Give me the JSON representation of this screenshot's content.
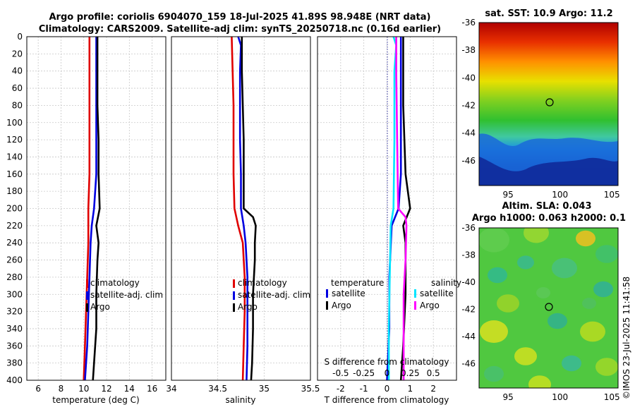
{
  "title": {
    "line1": "Argo profile: coriolis 6904070_159 18-Jul-2025 41.89S 98.948E (NRT data)",
    "line2": "Climatology: CARS2009. Satellite-adj clim: synTS_20250718.nc (0.16d earlier)"
  },
  "colors": {
    "climatology": "#e00000",
    "satellite": "#0000e0",
    "argo": "#000000",
    "sal_sat": "#00e5ff",
    "sal_argo": "#ff00ff"
  },
  "depth_ticks": [
    "0",
    "20",
    "40",
    "60",
    "80",
    "100",
    "120",
    "140",
    "160",
    "180",
    "200",
    "220",
    "240",
    "260",
    "280",
    "300",
    "320",
    "340",
    "360",
    "380",
    "400"
  ],
  "chart_data": [
    {
      "type": "line",
      "xlabel": "temperature (deg C)",
      "xlim": [
        5,
        17.2
      ],
      "ylim": [
        0,
        400
      ],
      "xticks": [
        "6",
        "8",
        "10",
        "12",
        "14",
        "16"
      ],
      "legend": [
        "climatology",
        "satellite-adj. clim",
        "Argo"
      ],
      "series": [
        {
          "name": "climatology",
          "depth": [
            0,
            40,
            80,
            120,
            160,
            200,
            240,
            280,
            320,
            360,
            400
          ],
          "values": [
            10.5,
            10.5,
            10.5,
            10.5,
            10.5,
            10.4,
            10.4,
            10.3,
            10.2,
            10.1,
            10.0
          ]
        },
        {
          "name": "satellite-adj. clim",
          "depth": [
            0,
            40,
            80,
            120,
            160,
            200,
            220,
            240,
            280,
            320,
            360,
            400
          ],
          "values": [
            11.1,
            11.1,
            11.1,
            11.1,
            11.1,
            10.9,
            10.7,
            10.6,
            10.5,
            10.4,
            10.3,
            10.1
          ]
        },
        {
          "name": "Argo",
          "depth": [
            0,
            40,
            80,
            120,
            160,
            200,
            220,
            240,
            260,
            300,
            340,
            380,
            400
          ],
          "values": [
            11.2,
            11.2,
            11.2,
            11.3,
            11.3,
            11.4,
            11.1,
            11.3,
            11.2,
            11.1,
            11.1,
            10.9,
            10.8
          ]
        }
      ]
    },
    {
      "type": "line",
      "xlabel": "salinity",
      "xlim": [
        34,
        35.5
      ],
      "ylim": [
        0,
        400
      ],
      "xticks": [
        "34",
        "34.5",
        "35",
        "35.5"
      ],
      "legend": [
        "climatology",
        "satellite-adj. clim",
        "Argo"
      ],
      "series": [
        {
          "name": "climatology",
          "depth": [
            0,
            40,
            80,
            120,
            160,
            200,
            220,
            240,
            280,
            320,
            360,
            400
          ],
          "values": [
            34.65,
            34.66,
            34.67,
            34.67,
            34.67,
            34.68,
            34.72,
            34.77,
            34.79,
            34.79,
            34.78,
            34.77
          ]
        },
        {
          "name": "satellite-adj. clim",
          "depth": [
            0,
            10,
            40,
            80,
            120,
            160,
            200,
            220,
            240,
            280,
            320,
            360,
            400
          ],
          "values": [
            34.72,
            34.75,
            34.74,
            34.74,
            34.74,
            34.75,
            34.75,
            34.78,
            34.8,
            34.82,
            34.82,
            34.82,
            34.81
          ]
        },
        {
          "name": "Argo",
          "depth": [
            0,
            40,
            80,
            120,
            160,
            200,
            210,
            220,
            240,
            260,
            300,
            340,
            380,
            400
          ],
          "values": [
            34.76,
            34.76,
            34.77,
            34.78,
            34.78,
            34.78,
            34.88,
            34.91,
            34.9,
            34.9,
            34.88,
            34.88,
            34.87,
            34.86
          ]
        }
      ]
    },
    {
      "type": "line",
      "xlabel": "T difference from climatology",
      "xlabel2": "S difference from climatology",
      "xlim": [
        -3,
        3
      ],
      "ylim": [
        0,
        400
      ],
      "xticks": [
        "-2",
        "-1",
        "0",
        "1",
        "2"
      ],
      "xticks2": [
        "-0.5",
        "-0.25",
        "0",
        "0.25",
        "0.5"
      ],
      "legend_title_t": "temperature",
      "legend_title_s": "salinity",
      "legend_t": [
        "satellite",
        "Argo"
      ],
      "legend_s": [
        "satellite",
        "Argo"
      ],
      "series": [
        {
          "name": "T satellite",
          "depth": [
            0,
            80,
            160,
            200,
            220,
            280,
            340,
            400
          ],
          "values": [
            0.6,
            0.6,
            0.6,
            0.5,
            0.2,
            0.1,
            0.1,
            0.0
          ]
        },
        {
          "name": "T Argo",
          "depth": [
            0,
            80,
            160,
            200,
            220,
            240,
            300,
            360,
            400
          ],
          "values": [
            0.7,
            0.7,
            0.8,
            1.0,
            0.7,
            0.8,
            0.8,
            0.7,
            0.6
          ]
        },
        {
          "name": "S satellite",
          "depth": [
            0,
            10,
            40,
            120,
            200,
            220,
            280,
            340,
            400
          ],
          "values": [
            0.07,
            0.1,
            0.08,
            0.08,
            0.07,
            0.04,
            0.03,
            0.02,
            0.02
          ]
        },
        {
          "name": "S Argo",
          "depth": [
            0,
            40,
            120,
            200,
            210,
            220,
            260,
            300,
            360,
            400
          ],
          "values": [
            0.1,
            0.1,
            0.11,
            0.12,
            0.2,
            0.21,
            0.2,
            0.18,
            0.18,
            0.18
          ]
        }
      ]
    },
    {
      "type": "heatmap",
      "title": "sat. SST: 10.9 Argo: 11.2",
      "xticks": [
        "95",
        "100",
        "105"
      ],
      "yticks": [
        "-36",
        "-38",
        "-40",
        "-42",
        "-44",
        "-46"
      ],
      "marker": {
        "lon": 98.95,
        "lat": -41.89
      }
    },
    {
      "type": "heatmap",
      "title": "Altim. SLA: 0.043",
      "subtitle": "Argo h1000: 0.063 h2000: 0.1",
      "xticks": [
        "95",
        "100",
        "105"
      ],
      "yticks": [
        "-36",
        "-38",
        "-40",
        "-42",
        "-44",
        "-46"
      ],
      "marker": {
        "lon": 98.95,
        "lat": -41.89
      }
    }
  ],
  "footer": "©IMOS 23-Jul-2025 11:41:58"
}
